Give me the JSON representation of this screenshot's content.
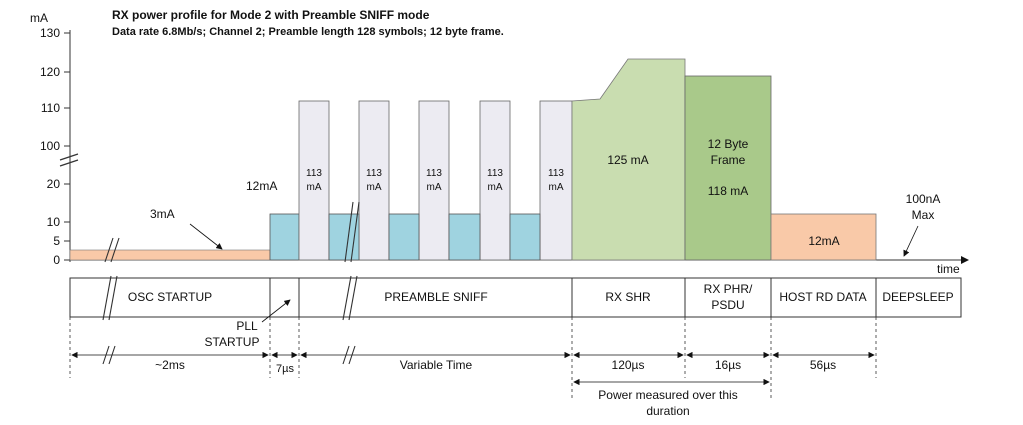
{
  "title_line1": "RX power profile for Mode 2 with Preamble SNIFF mode",
  "title_line2": "Data rate 6.8Mb/s; Channel 2; Preamble length 128 symbols; 12 byte frame.",
  "axis": {
    "y_unit": "mA",
    "y_ticks": [
      "0",
      "5",
      "10",
      "20",
      "100",
      "110",
      "120",
      "130"
    ],
    "x_label": "time"
  },
  "annotations": {
    "osc_current": "3mA",
    "pll_current": "12mA",
    "pulse_label_value": "113",
    "pulse_label_unit": "mA",
    "shr_current": "125 mA",
    "frame_line1": "12 Byte",
    "frame_line2": "Frame",
    "frame_current": "118 mA",
    "host_current": "12mA",
    "deepsleep_line1": "100nA",
    "deepsleep_line2": "Max"
  },
  "phases": {
    "osc": "OSC  STARTUP",
    "sniff": "PREAMBLE SNIFF",
    "rx_shr": "RX SHR",
    "rx_phr_line1": "RX PHR/",
    "rx_phr_line2": "PSDU",
    "host": "HOST RD DATA",
    "deepsleep": "DEEPSLEEP",
    "pll_line1": "PLL",
    "pll_line2": "STARTUP"
  },
  "durations": {
    "osc": "~2ms",
    "pll": "7µs",
    "sniff": "Variable Time",
    "rx_shr": "120µs",
    "rx_phr": "16µs",
    "host": "56µs",
    "power_note_line1": "Power measured over this",
    "power_note_line2": "duration"
  },
  "colors": {
    "osc": "#f9c9a8",
    "pll": "#9fd3e0",
    "pulse": "#ecebf2",
    "shr": "#c9ddb0",
    "frame": "#a9c98a",
    "host": "#f9c9a8"
  }
}
